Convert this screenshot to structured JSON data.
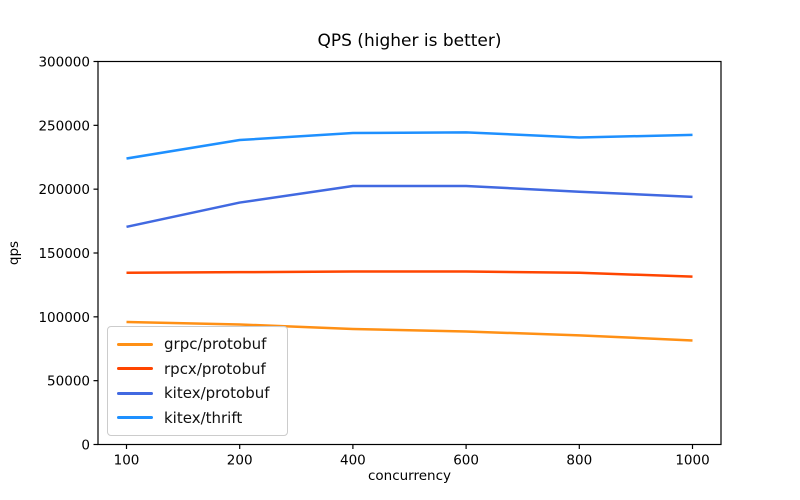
{
  "figure": {
    "background": "#ffffff",
    "axis_color": "#000000",
    "text_color": "#000000",
    "legend_border_color": "#cccccc",
    "legend_background": "rgba(255,255,255,0.8)"
  },
  "chart_data": {
    "type": "line",
    "title": "QPS (higher is better)",
    "xlabel": "concurrency",
    "ylabel": "qps",
    "categories": [
      "100",
      "200",
      "400",
      "600",
      "800",
      "1000"
    ],
    "series": [
      {
        "name": "grpc/protobuf",
        "color": "#FF9015",
        "values": [
          96000,
          94000,
          90500,
          88500,
          85500,
          81500
        ]
      },
      {
        "name": "rpcx/protobuf",
        "color": "#FF4500",
        "values": [
          134500,
          135000,
          135500,
          135500,
          134500,
          131500
        ]
      },
      {
        "name": "kitex/protobuf",
        "color": "#4169E1",
        "values": [
          170500,
          189500,
          202500,
          202500,
          198000,
          194000
        ]
      },
      {
        "name": "kitex/thrift",
        "color": "#1E90FF",
        "values": [
          224000,
          238500,
          244000,
          244500,
          240500,
          242500
        ]
      }
    ],
    "ylim": [
      0,
      300000
    ],
    "yticks": [
      0,
      50000,
      100000,
      150000,
      200000,
      250000,
      300000
    ],
    "grid": false,
    "markers": false,
    "legend_position": "lower-left"
  }
}
